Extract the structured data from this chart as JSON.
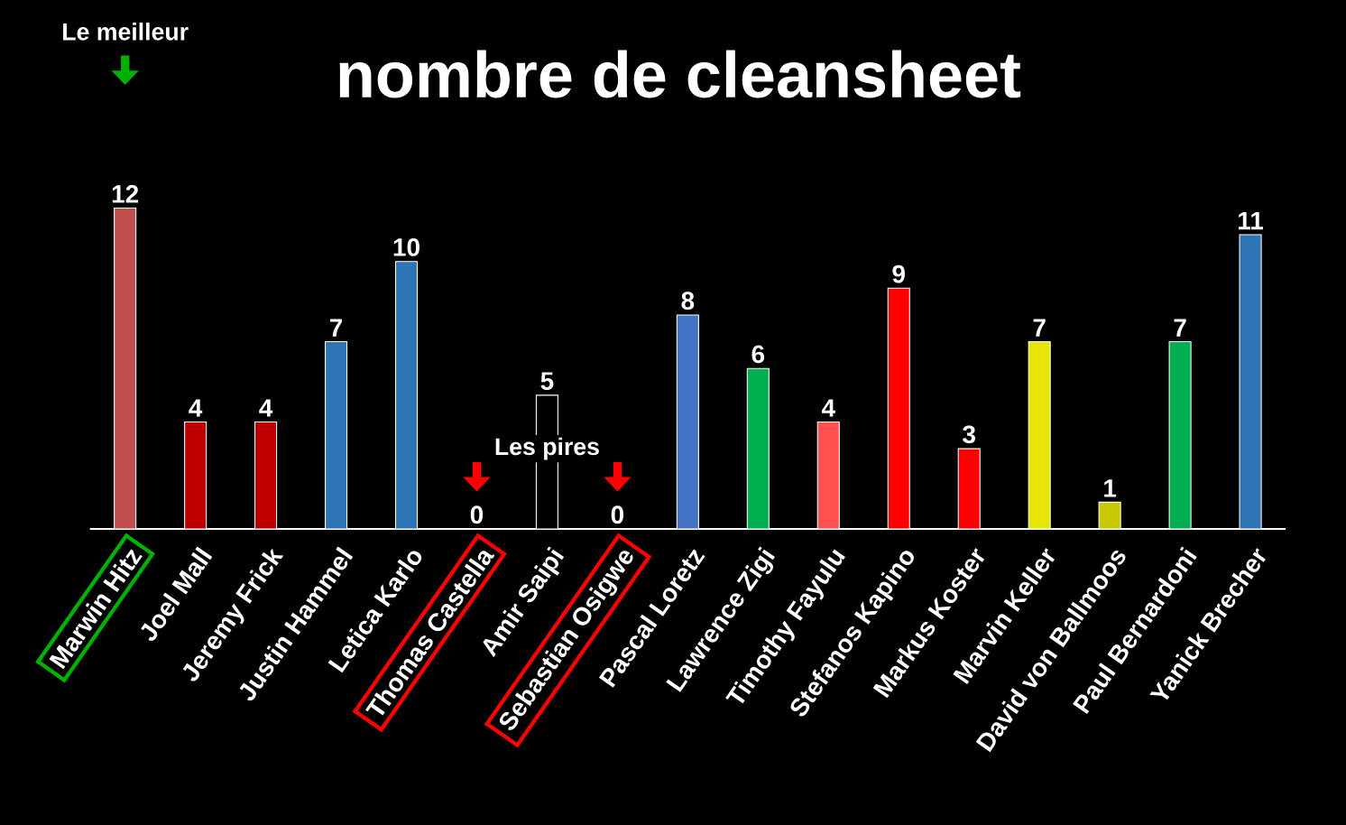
{
  "chart_data": {
    "type": "bar",
    "title": "nombre de cleansheet",
    "categories": [
      "Marwin Hitz",
      "Joel Mall",
      "Jeremy Frick",
      "Justin Hammel",
      "Letica Karlo",
      "Thomas Castella",
      "Amir Saipi",
      "Sebastian Osigwe",
      "Pascal Loretz",
      "Lawrence Zigi",
      "Timothy Fayulu",
      "Stefanos Kapino",
      "Markus Koster",
      "Marvin Keller",
      "David von Ballmoos",
      "Paul Bernardoni",
      "Yanick Brecher"
    ],
    "values": [
      12,
      4,
      4,
      7,
      10,
      0,
      5,
      0,
      8,
      6,
      4,
      9,
      3,
      7,
      1,
      7,
      11
    ],
    "colors": [
      "#c0504d",
      "#c00000",
      "#c00000",
      "#2e75b6",
      "#2e75b6",
      "#ffffff",
      "#000000",
      "#ffffff",
      "#4472c4",
      "#00b050",
      "#ff5050",
      "#ff0000",
      "#ff0000",
      "#e6e600",
      "#c9c900",
      "#00b050",
      "#2e75b6"
    ],
    "data_labels": true,
    "annotations": [
      "Le meilleur",
      "Les pires"
    ]
  }
}
